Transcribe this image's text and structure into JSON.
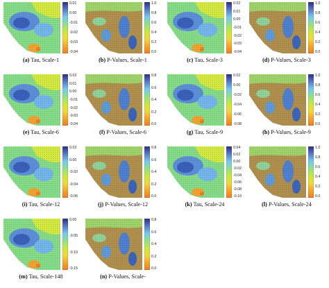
{
  "figure": {
    "panels": [
      {
        "letter": "(a)",
        "caption": "Tau, Scale-1",
        "kind": "tau",
        "ticks": [
          "0.01",
          "0.00",
          "-0.01",
          "-0.02",
          "-0.03",
          "-0.04"
        ]
      },
      {
        "letter": "(b)",
        "caption": "P-Values, Scale-1",
        "kind": "p",
        "ticks": [
          "1.0",
          "0.8",
          "0.6",
          "0.4",
          "0.2",
          "0.0"
        ]
      },
      {
        "letter": "(c)",
        "caption": "Tau, Scale-3",
        "kind": "tau",
        "ticks": [
          "0.02",
          "0.01",
          "0.00",
          "-0.01",
          "-0.02",
          "-0.03",
          "-0.04"
        ]
      },
      {
        "letter": "(d)",
        "caption": "P-Values, Scale-3",
        "kind": "p",
        "ticks": [
          "1.0",
          "0.8",
          "0.6",
          "0.4",
          "0.2",
          "0.0"
        ]
      },
      {
        "letter": "(e)",
        "caption": "Tau,  Scale-6",
        "kind": "tau",
        "ticks": [
          "0.02",
          "0.01",
          "0.00",
          "-0.01",
          "-0.02",
          "-0.03",
          "-0.04"
        ]
      },
      {
        "letter": "(f)",
        "caption": "P-Values, Scale-6",
        "kind": "p",
        "ticks": [
          "0.8",
          "0.6",
          "0.4",
          "0.2",
          "0.0"
        ]
      },
      {
        "letter": "(g)",
        "caption": "Tau, Scale-9",
        "kind": "tau",
        "ticks": [
          "0.02",
          "0.00",
          "-0.02",
          "-0.04",
          "-0.06",
          "-0.08"
        ]
      },
      {
        "letter": "(h)",
        "caption": "P-Values, Scale-9",
        "kind": "p",
        "ticks": [
          "1.0",
          "0.8",
          "0.6",
          "0.4",
          "0.2",
          "0.0"
        ]
      },
      {
        "letter": "(i)",
        "caption": "Tau, Scale-12",
        "kind": "tau",
        "ticks": [
          "0.02",
          "0.00",
          "-0.02",
          "-0.04",
          "-0.06"
        ]
      },
      {
        "letter": "(j)",
        "caption": "P-Values, Scale-12",
        "kind": "p",
        "ticks": [
          "0.8",
          "0.6",
          "0.4",
          "0.2",
          "0.0"
        ]
      },
      {
        "letter": "(k)",
        "caption": "Tau, Scale-24",
        "kind": "tau",
        "ticks": [
          "0.04",
          "0.02",
          "0.00",
          "-0.02",
          "-0.04",
          "-0.06",
          "-0.08",
          "-0.10"
        ]
      },
      {
        "letter": "(l)",
        "caption": "P-Values, Scale-24",
        "kind": "p",
        "ticks": [
          "1.0",
          "0.8",
          "0.6",
          "0.4",
          "0.2",
          "0.0"
        ]
      },
      {
        "letter": "(m)",
        "caption": "Tau, Scale-148",
        "kind": "tau",
        "ticks": [
          "0.00",
          "-0.05",
          "-0.10",
          "-0.15"
        ]
      },
      {
        "letter": "(n)",
        "caption": "P-Values, Scale-",
        "kind": "p",
        "ticks": [
          "0.8",
          "0.6",
          "0.4",
          "0.2",
          "0.0"
        ]
      }
    ],
    "colorbar_colors": [
      "#2b2c84",
      "#5a78c8",
      "#74c9f0",
      "#8fe08a",
      "#c7e83e",
      "#f0d93a",
      "#f6a52e",
      "#f47a20"
    ]
  }
}
